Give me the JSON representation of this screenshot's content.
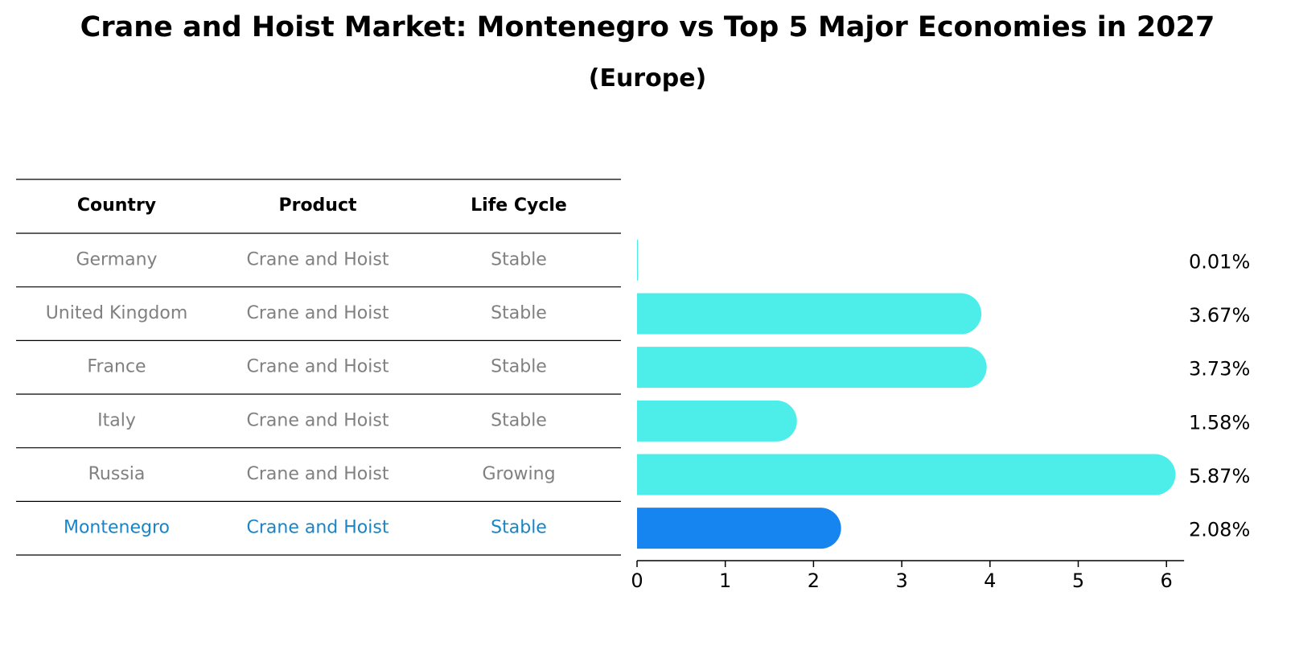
{
  "title": "Crane and Hoist Market: Montenegro vs Top 5 Major Economies in 2027",
  "subtitle": "(Europe)",
  "table": {
    "headers": [
      "Country",
      "Product",
      "Life Cycle"
    ],
    "rows": [
      {
        "country": "Germany",
        "product": "Crane and Hoist",
        "life_cycle": "Stable"
      },
      {
        "country": "United Kingdom",
        "product": "Crane and Hoist",
        "life_cycle": "Stable"
      },
      {
        "country": "France",
        "product": "Crane and Hoist",
        "life_cycle": "Stable"
      },
      {
        "country": "Italy",
        "product": "Crane and Hoist",
        "life_cycle": "Stable"
      },
      {
        "country": "Russia",
        "product": "Crane and Hoist",
        "life_cycle": "Growing"
      },
      {
        "country": "Montenegro",
        "product": "Crane and Hoist",
        "life_cycle": "Stable"
      }
    ]
  },
  "colors": {
    "bar": "#4DEEEA",
    "highlight_bar": "#1785F0",
    "highlight_text": "#1785C8",
    "row_text": "#808080"
  },
  "chart_data": {
    "type": "bar",
    "orientation": "horizontal",
    "categories": [
      "Germany",
      "United Kingdom",
      "France",
      "Italy",
      "Russia",
      "Montenegro"
    ],
    "values": [
      0.01,
      3.67,
      3.73,
      1.58,
      5.87,
      2.08
    ],
    "value_labels": [
      "0.01%",
      "3.67%",
      "3.73%",
      "1.58%",
      "5.87%",
      "2.08%"
    ],
    "highlight": "Montenegro",
    "xlim": [
      0,
      6.2
    ],
    "xticks": [
      "0",
      "1",
      "2",
      "3",
      "4",
      "5",
      "6"
    ],
    "grid": false
  }
}
